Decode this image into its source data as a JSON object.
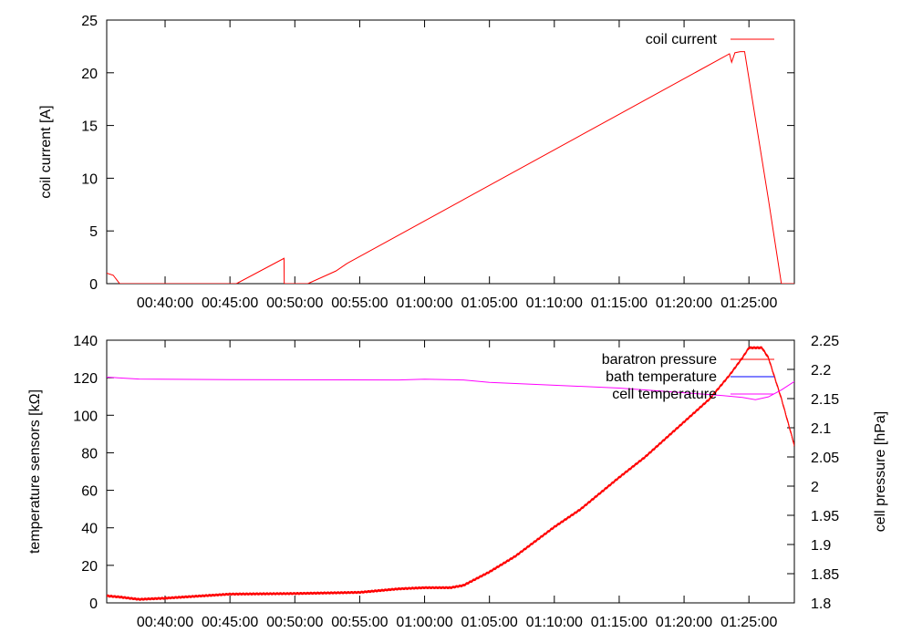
{
  "chart_data": [
    {
      "type": "line",
      "title": "",
      "xlabel": "",
      "ylabel": "coil current [A]",
      "xlim": [
        "00:35:30",
        "01:28:30"
      ],
      "ylim": [
        0,
        25
      ],
      "x_ticks": [
        "00:40:00",
        "00:45:00",
        "00:50:00",
        "00:55:00",
        "01:00:00",
        "01:05:00",
        "01:10:00",
        "01:15:00",
        "01:20:00",
        "01:25:00"
      ],
      "y_ticks": [
        0,
        5,
        10,
        15,
        20,
        25
      ],
      "legend_position": "top-right",
      "series": [
        {
          "name": "coil current",
          "color": "#ff0000",
          "points": [
            [
              "00:35:30",
              1.0
            ],
            [
              "00:36:00",
              0.8
            ],
            [
              "00:36:30",
              0
            ],
            [
              "00:45:30",
              0
            ],
            [
              "00:49:10",
              2.4
            ],
            [
              "00:49:11",
              0
            ],
            [
              "00:51:00",
              0
            ],
            [
              "00:53:10",
              1.2
            ],
            [
              "00:54:00",
              1.9
            ],
            [
              "01:23:30",
              21.8
            ],
            [
              "01:23:40",
              21.0
            ],
            [
              "01:23:55",
              21.9
            ],
            [
              "01:24:20",
              22.0
            ],
            [
              "01:24:40",
              22.0
            ],
            [
              "01:26:30",
              8.0
            ],
            [
              "01:27:30",
              0
            ],
            [
              "01:28:30",
              0
            ]
          ]
        }
      ]
    },
    {
      "type": "line",
      "title": "",
      "xlabel": "",
      "ylabel": "temperature sensors [kΩ]",
      "y2label": "cell pressure [hPa]",
      "xlim": [
        "00:35:30",
        "01:28:30"
      ],
      "ylim": [
        0,
        140
      ],
      "y2lim": [
        1.8,
        2.25
      ],
      "x_ticks": [
        "00:40:00",
        "00:45:00",
        "00:50:00",
        "00:55:00",
        "01:00:00",
        "01:05:00",
        "01:10:00",
        "01:15:00",
        "01:20:00",
        "01:25:00"
      ],
      "y_ticks": [
        0,
        20,
        40,
        60,
        80,
        100,
        120,
        140
      ],
      "y2_ticks": [
        "1.8",
        "1.85",
        "1.9",
        "1.95",
        "2",
        "2.05",
        "2.1",
        "2.15",
        "2.2",
        "2.25"
      ],
      "legend_position": "top-right",
      "series": [
        {
          "name": "baratron pressure",
          "color": "#ff0000",
          "axis": "y2",
          "noise": 1.6,
          "points": [
            [
              "00:35:30",
              1.812
            ],
            [
              "00:36:30",
              1.81
            ],
            [
              "00:38:00",
              1.806
            ],
            [
              "00:40:00",
              1.808
            ],
            [
              "00:45:00",
              1.815
            ],
            [
              "00:50:00",
              1.816
            ],
            [
              "00:55:00",
              1.818
            ],
            [
              "00:58:00",
              1.824
            ],
            [
              "01:00:00",
              1.826
            ],
            [
              "01:02:00",
              1.826
            ],
            [
              "01:03:00",
              1.83
            ],
            [
              "01:05:00",
              1.853
            ],
            [
              "01:07:00",
              1.88
            ],
            [
              "01:10:00",
              1.93
            ],
            [
              "01:12:00",
              1.96
            ],
            [
              "01:15:00",
              2.015
            ],
            [
              "01:17:00",
              2.05
            ],
            [
              "01:20:00",
              2.11
            ],
            [
              "01:22:00",
              2.15
            ],
            [
              "01:23:30",
              2.19
            ],
            [
              "01:24:30",
              2.22
            ],
            [
              "01:25:00",
              2.237
            ],
            [
              "01:26:00",
              2.237
            ],
            [
              "01:26:30",
              2.22
            ],
            [
              "01:27:30",
              2.15
            ],
            [
              "01:28:30",
              2.07
            ]
          ]
        },
        {
          "name": "bath temperature",
          "color": "#0000ff",
          "axis": "y",
          "points": []
        },
        {
          "name": "cell temperature",
          "color": "#ff00ff",
          "axis": "y",
          "points": [
            [
              "00:35:30",
              120.3
            ],
            [
              "00:38:00",
              119.3
            ],
            [
              "00:45:00",
              119.0
            ],
            [
              "00:58:00",
              118.8
            ],
            [
              "01:00:00",
              119.2
            ],
            [
              "01:03:00",
              118.8
            ],
            [
              "01:05:00",
              117.5
            ],
            [
              "01:10:00",
              116.0
            ],
            [
              "01:15:00",
              114.5
            ],
            [
              "01:20:00",
              112.0
            ],
            [
              "01:23:00",
              110.5
            ],
            [
              "01:24:30",
              109.5
            ],
            [
              "01:25:30",
              108.3
            ],
            [
              "01:26:30",
              109.8
            ],
            [
              "01:27:30",
              113.5
            ],
            [
              "01:28:30",
              118.0
            ]
          ]
        }
      ]
    }
  ]
}
